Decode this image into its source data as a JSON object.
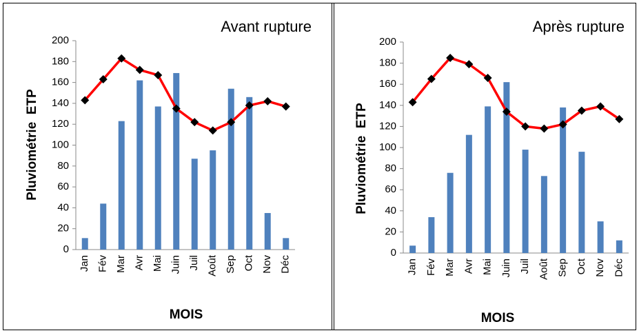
{
  "chart_data": [
    {
      "type": "bar-line",
      "title": "Avant rupture",
      "ylabel": "Pluviométrie  ETP",
      "xlabel": "MOIS",
      "categories": [
        "Jan",
        "Fév",
        "Mar",
        "Avr",
        "Mai",
        "Juin",
        "Juil",
        "Août",
        "Sep",
        "Oct",
        "Nov",
        "Déc"
      ],
      "series": [
        {
          "type": "bar",
          "color": "#4f81bd",
          "values": [
            11,
            44,
            123,
            162,
            137,
            169,
            87,
            95,
            154,
            146,
            35,
            11
          ]
        },
        {
          "type": "line",
          "color": "#ff0000",
          "marker_color": "#000000",
          "values": [
            143,
            163,
            183,
            172,
            167,
            135,
            122,
            114,
            122,
            138,
            142,
            137
          ]
        }
      ],
      "ylim": [
        0,
        200
      ],
      "yticks": [
        0,
        20,
        40,
        60,
        80,
        100,
        120,
        140,
        160,
        180,
        200
      ]
    },
    {
      "type": "bar-line",
      "title": "Après rupture",
      "ylabel": "Pluviométrie  ETP",
      "xlabel": "MOIS",
      "categories": [
        "Jan",
        "Fév",
        "Mar",
        "Avr",
        "Mai",
        "Juin",
        "Juil",
        "Août",
        "Sep",
        "Oct",
        "Nov",
        "Déc"
      ],
      "series": [
        {
          "type": "bar",
          "color": "#4f81bd",
          "values": [
            7,
            34,
            76,
            112,
            139,
            162,
            98,
            73,
            138,
            96,
            30,
            12
          ]
        },
        {
          "type": "line",
          "color": "#ff0000",
          "marker_color": "#000000",
          "values": [
            143,
            165,
            185,
            179,
            166,
            134,
            120,
            118,
            122,
            135,
            139,
            127
          ]
        }
      ],
      "ylim": [
        0,
        200
      ],
      "yticks": [
        0,
        20,
        40,
        60,
        80,
        100,
        120,
        140,
        160,
        180,
        200
      ]
    }
  ]
}
